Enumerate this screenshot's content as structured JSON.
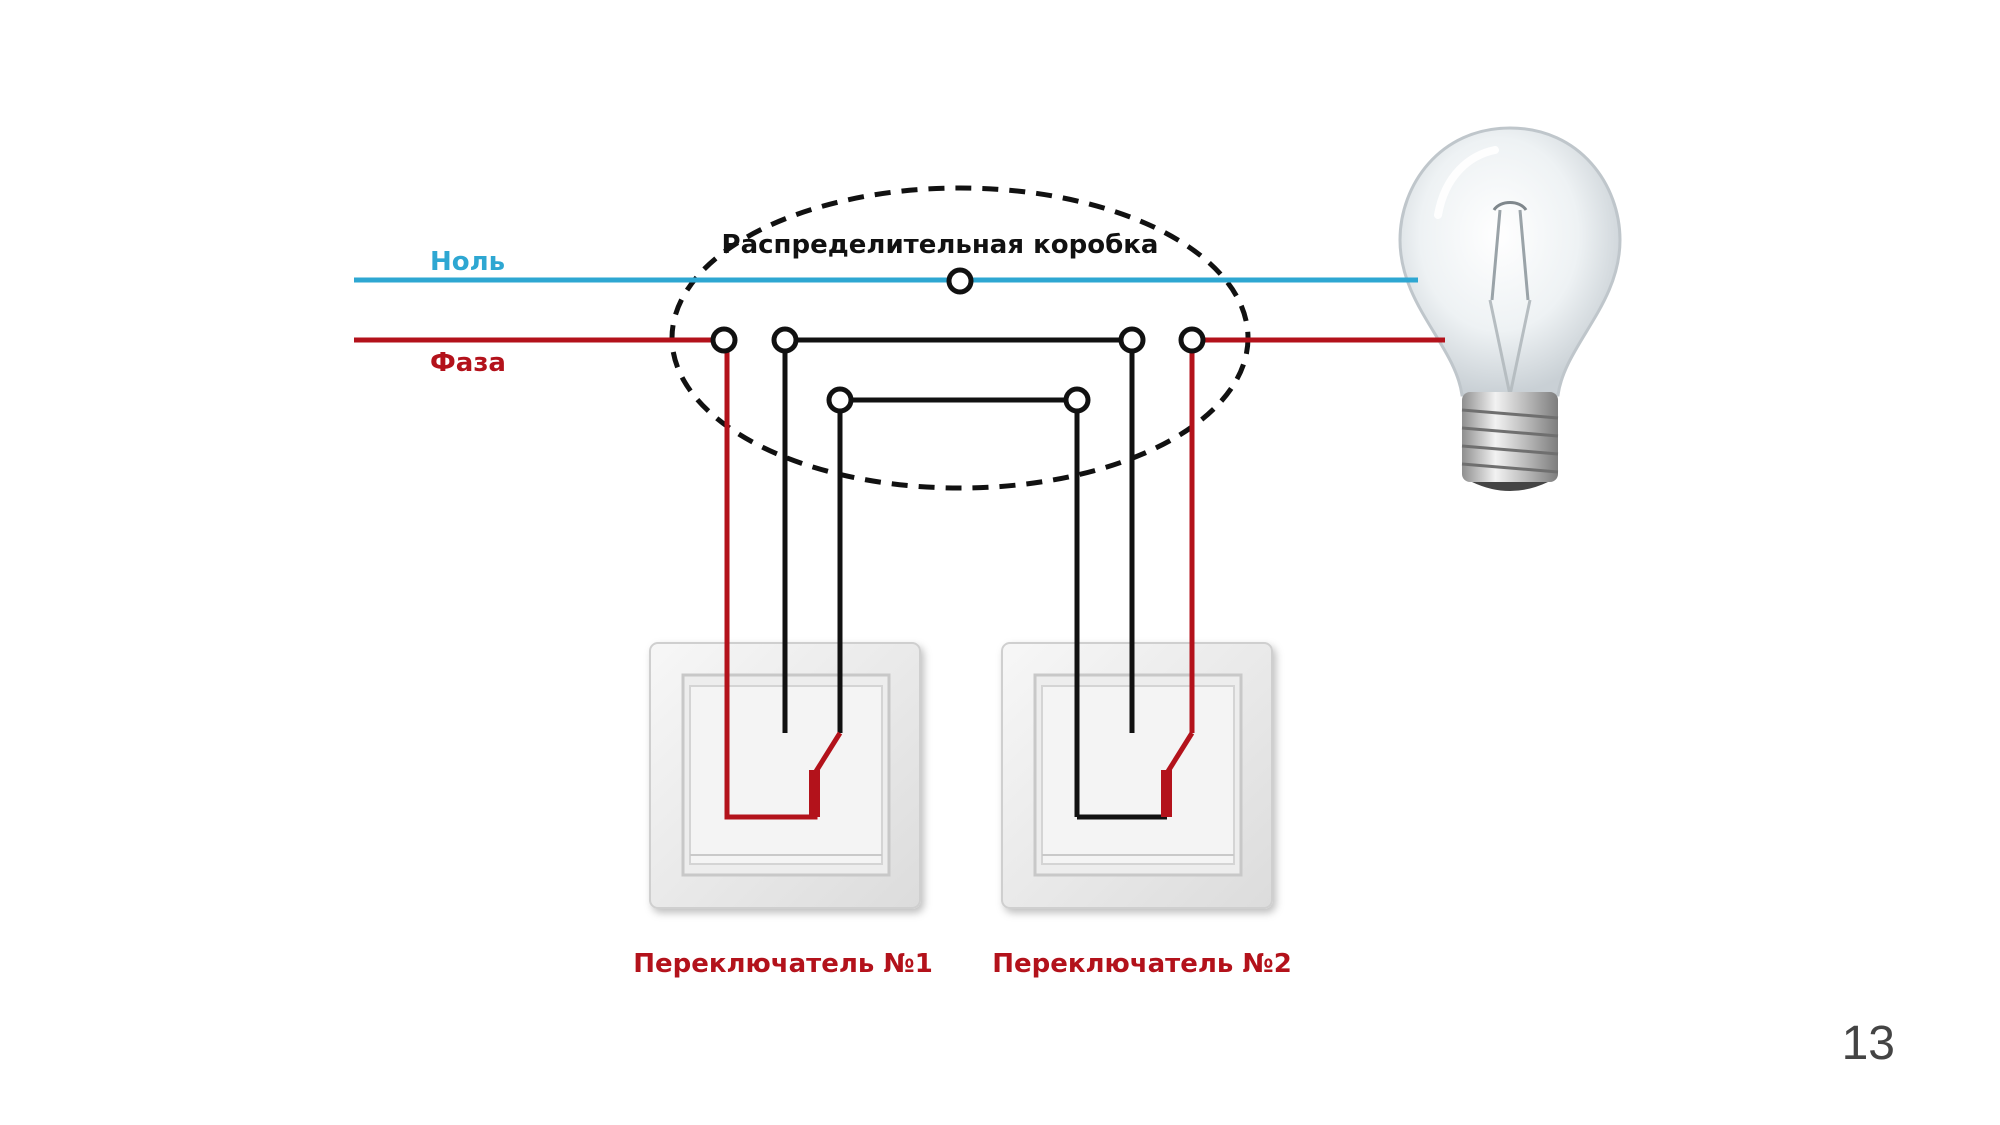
{
  "labels": {
    "neutral": "Ноль",
    "phase": "Фаза",
    "junction_box": "Распределительная коробка",
    "switch_1": "Переключатель №1",
    "switch_2": "Переключатель №2"
  },
  "page_number": "13",
  "colors": {
    "neutral": "#2ea7d2",
    "phase": "#b3121b",
    "wire": "#111111",
    "switch_plate": "#ececec"
  }
}
